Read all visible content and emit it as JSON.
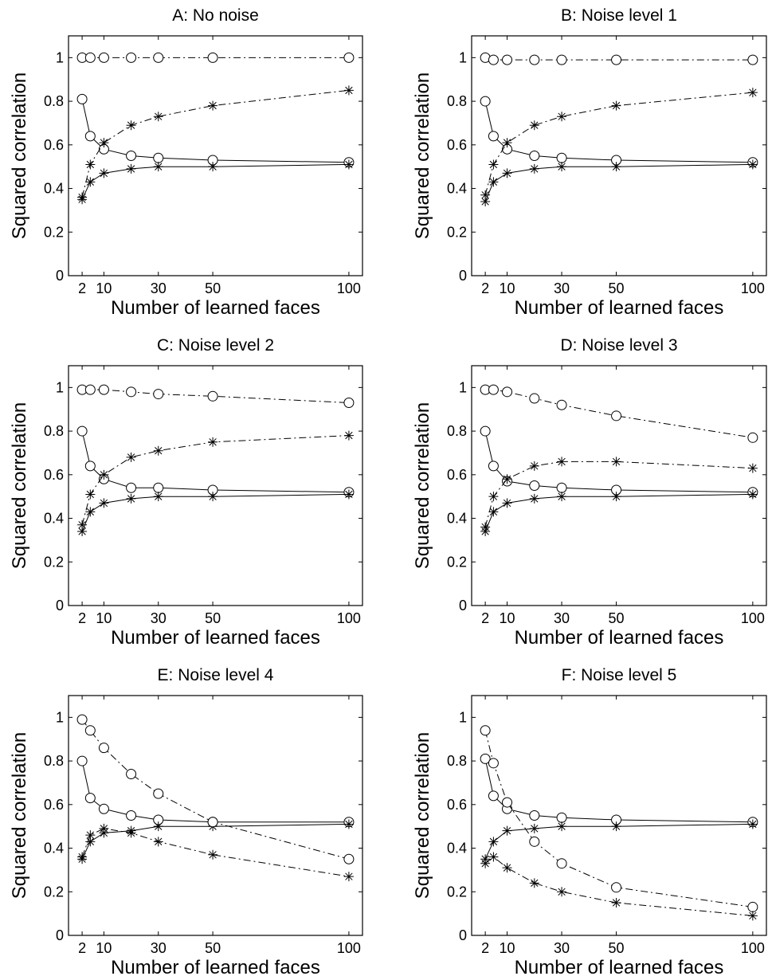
{
  "chart_data": [
    {
      "type": "line",
      "title": "A: No noise",
      "xlabel": "Number of learned faces",
      "ylabel": "Squared correlation",
      "x": [
        2,
        5,
        10,
        20,
        30,
        50,
        100
      ],
      "xticks": [
        2,
        10,
        30,
        50,
        100
      ],
      "xtick_labels": [
        "2",
        "10",
        "30",
        "50",
        "100"
      ],
      "yticks": [
        0,
        0.2,
        0.4,
        0.6,
        0.8,
        1
      ],
      "ytick_labels": [
        "0",
        "0.2",
        "0.4",
        "0.6",
        "0.8",
        "1"
      ],
      "xlim": [
        -3,
        105
      ],
      "ylim": [
        0,
        1.1
      ],
      "grid": false,
      "series": [
        {
          "marker": "circle",
          "line": "solid",
          "values": [
            0.81,
            0.64,
            0.58,
            0.55,
            0.54,
            0.53,
            0.52
          ]
        },
        {
          "marker": "star",
          "line": "solid",
          "values": [
            0.35,
            0.43,
            0.47,
            0.49,
            0.5,
            0.5,
            0.51
          ]
        },
        {
          "marker": "circle",
          "line": "dashdot",
          "values": [
            1.0,
            1.0,
            1.0,
            1.0,
            1.0,
            1.0,
            1.0
          ]
        },
        {
          "marker": "star",
          "line": "dashdot",
          "values": [
            0.36,
            0.51,
            0.61,
            0.69,
            0.73,
            0.78,
            0.85
          ]
        }
      ]
    },
    {
      "type": "line",
      "title": "B: Noise level 1",
      "xlabel": "Number of learned faces",
      "ylabel": "Squared correlation",
      "x": [
        2,
        5,
        10,
        20,
        30,
        50,
        100
      ],
      "xticks": [
        2,
        10,
        30,
        50,
        100
      ],
      "xtick_labels": [
        "2",
        "10",
        "30",
        "50",
        "100"
      ],
      "yticks": [
        0,
        0.2,
        0.4,
        0.6,
        0.8,
        1
      ],
      "ytick_labels": [
        "0",
        "0.2",
        "0.4",
        "0.6",
        "0.8",
        "1"
      ],
      "xlim": [
        -3,
        105
      ],
      "ylim": [
        0,
        1.1
      ],
      "grid": false,
      "series": [
        {
          "marker": "circle",
          "line": "solid",
          "values": [
            0.8,
            0.64,
            0.58,
            0.55,
            0.54,
            0.53,
            0.52
          ]
        },
        {
          "marker": "star",
          "line": "solid",
          "values": [
            0.34,
            0.43,
            0.47,
            0.49,
            0.5,
            0.5,
            0.51
          ]
        },
        {
          "marker": "circle",
          "line": "dashdot",
          "values": [
            1.0,
            0.99,
            0.99,
            0.99,
            0.99,
            0.99,
            0.99
          ]
        },
        {
          "marker": "star",
          "line": "dashdot",
          "values": [
            0.37,
            0.51,
            0.61,
            0.69,
            0.73,
            0.78,
            0.84
          ]
        }
      ]
    },
    {
      "type": "line",
      "title": "C: Noise level 2",
      "xlabel": "Number of learned faces",
      "ylabel": "Squared correlation",
      "x": [
        2,
        5,
        10,
        20,
        30,
        50,
        100
      ],
      "xticks": [
        2,
        10,
        30,
        50,
        100
      ],
      "xtick_labels": [
        "2",
        "10",
        "30",
        "50",
        "100"
      ],
      "yticks": [
        0,
        0.2,
        0.4,
        0.6,
        0.8,
        1
      ],
      "ytick_labels": [
        "0",
        "0.2",
        "0.4",
        "0.6",
        "0.8",
        "1"
      ],
      "xlim": [
        -3,
        105
      ],
      "ylim": [
        0,
        1.1
      ],
      "grid": false,
      "series": [
        {
          "marker": "circle",
          "line": "solid",
          "values": [
            0.8,
            0.64,
            0.58,
            0.54,
            0.54,
            0.53,
            0.52
          ]
        },
        {
          "marker": "star",
          "line": "solid",
          "values": [
            0.34,
            0.43,
            0.47,
            0.49,
            0.5,
            0.5,
            0.51
          ]
        },
        {
          "marker": "circle",
          "line": "dashdot",
          "values": [
            0.99,
            0.99,
            0.99,
            0.98,
            0.97,
            0.96,
            0.93
          ]
        },
        {
          "marker": "star",
          "line": "dashdot",
          "values": [
            0.37,
            0.51,
            0.6,
            0.68,
            0.71,
            0.75,
            0.78
          ]
        }
      ]
    },
    {
      "type": "line",
      "title": "D: Noise level 3",
      "xlabel": "Number of learned faces",
      "ylabel": "Squared correlation",
      "x": [
        2,
        5,
        10,
        20,
        30,
        50,
        100
      ],
      "xticks": [
        2,
        10,
        30,
        50,
        100
      ],
      "xtick_labels": [
        "2",
        "10",
        "30",
        "50",
        "100"
      ],
      "yticks": [
        0,
        0.2,
        0.4,
        0.6,
        0.8,
        1
      ],
      "ytick_labels": [
        "0",
        "0.2",
        "0.4",
        "0.6",
        "0.8",
        "1"
      ],
      "xlim": [
        -3,
        105
      ],
      "ylim": [
        0,
        1.1
      ],
      "grid": false,
      "series": [
        {
          "marker": "circle",
          "line": "solid",
          "values": [
            0.8,
            0.64,
            0.57,
            0.55,
            0.54,
            0.53,
            0.52
          ]
        },
        {
          "marker": "star",
          "line": "solid",
          "values": [
            0.34,
            0.43,
            0.47,
            0.49,
            0.5,
            0.5,
            0.51
          ]
        },
        {
          "marker": "circle",
          "line": "dashdot",
          "values": [
            0.99,
            0.99,
            0.98,
            0.95,
            0.92,
            0.87,
            0.77
          ]
        },
        {
          "marker": "star",
          "line": "dashdot",
          "values": [
            0.36,
            0.5,
            0.58,
            0.64,
            0.66,
            0.66,
            0.63
          ]
        }
      ]
    },
    {
      "type": "line",
      "title": "E: Noise level 4",
      "xlabel": "Number of learned faces",
      "ylabel": "Squared correlation",
      "x": [
        2,
        5,
        10,
        20,
        30,
        50,
        100
      ],
      "xticks": [
        2,
        10,
        30,
        50,
        100
      ],
      "xtick_labels": [
        "2",
        "10",
        "30",
        "50",
        "100"
      ],
      "yticks": [
        0,
        0.2,
        0.4,
        0.6,
        0.8,
        1
      ],
      "ytick_labels": [
        "0",
        "0.2",
        "0.4",
        "0.6",
        "0.8",
        "1"
      ],
      "xlim": [
        -3,
        105
      ],
      "ylim": [
        0,
        1.1
      ],
      "grid": false,
      "series": [
        {
          "marker": "circle",
          "line": "solid",
          "values": [
            0.8,
            0.63,
            0.58,
            0.55,
            0.53,
            0.52,
            0.52
          ]
        },
        {
          "marker": "star",
          "line": "solid",
          "values": [
            0.35,
            0.43,
            0.47,
            0.48,
            0.5,
            0.5,
            0.51
          ]
        },
        {
          "marker": "circle",
          "line": "dashdot",
          "values": [
            0.99,
            0.94,
            0.86,
            0.74,
            0.65,
            0.52,
            0.35
          ]
        },
        {
          "marker": "star",
          "line": "dashdot",
          "values": [
            0.36,
            0.46,
            0.49,
            0.47,
            0.43,
            0.37,
            0.27
          ]
        }
      ]
    },
    {
      "type": "line",
      "title": "F: Noise level 5",
      "xlabel": "Number of learned faces",
      "ylabel": "Squared correlation",
      "x": [
        2,
        5,
        10,
        20,
        30,
        50,
        100
      ],
      "xticks": [
        2,
        10,
        30,
        50,
        100
      ],
      "xtick_labels": [
        "2",
        "10",
        "30",
        "50",
        "100"
      ],
      "yticks": [
        0,
        0.2,
        0.4,
        0.6,
        0.8,
        1
      ],
      "ytick_labels": [
        "0",
        "0.2",
        "0.4",
        "0.6",
        "0.8",
        "1"
      ],
      "xlim": [
        -3,
        105
      ],
      "ylim": [
        0,
        1.1
      ],
      "grid": false,
      "series": [
        {
          "marker": "circle",
          "line": "solid",
          "values": [
            0.81,
            0.64,
            0.58,
            0.55,
            0.54,
            0.53,
            0.52
          ]
        },
        {
          "marker": "star",
          "line": "solid",
          "values": [
            0.35,
            0.43,
            0.48,
            0.49,
            0.5,
            0.5,
            0.51
          ]
        },
        {
          "marker": "circle",
          "line": "dashdot",
          "values": [
            0.94,
            0.79,
            0.61,
            0.43,
            0.33,
            0.22,
            0.13
          ]
        },
        {
          "marker": "star",
          "line": "dashdot",
          "values": [
            0.33,
            0.36,
            0.31,
            0.24,
            0.2,
            0.15,
            0.09
          ]
        }
      ]
    }
  ]
}
